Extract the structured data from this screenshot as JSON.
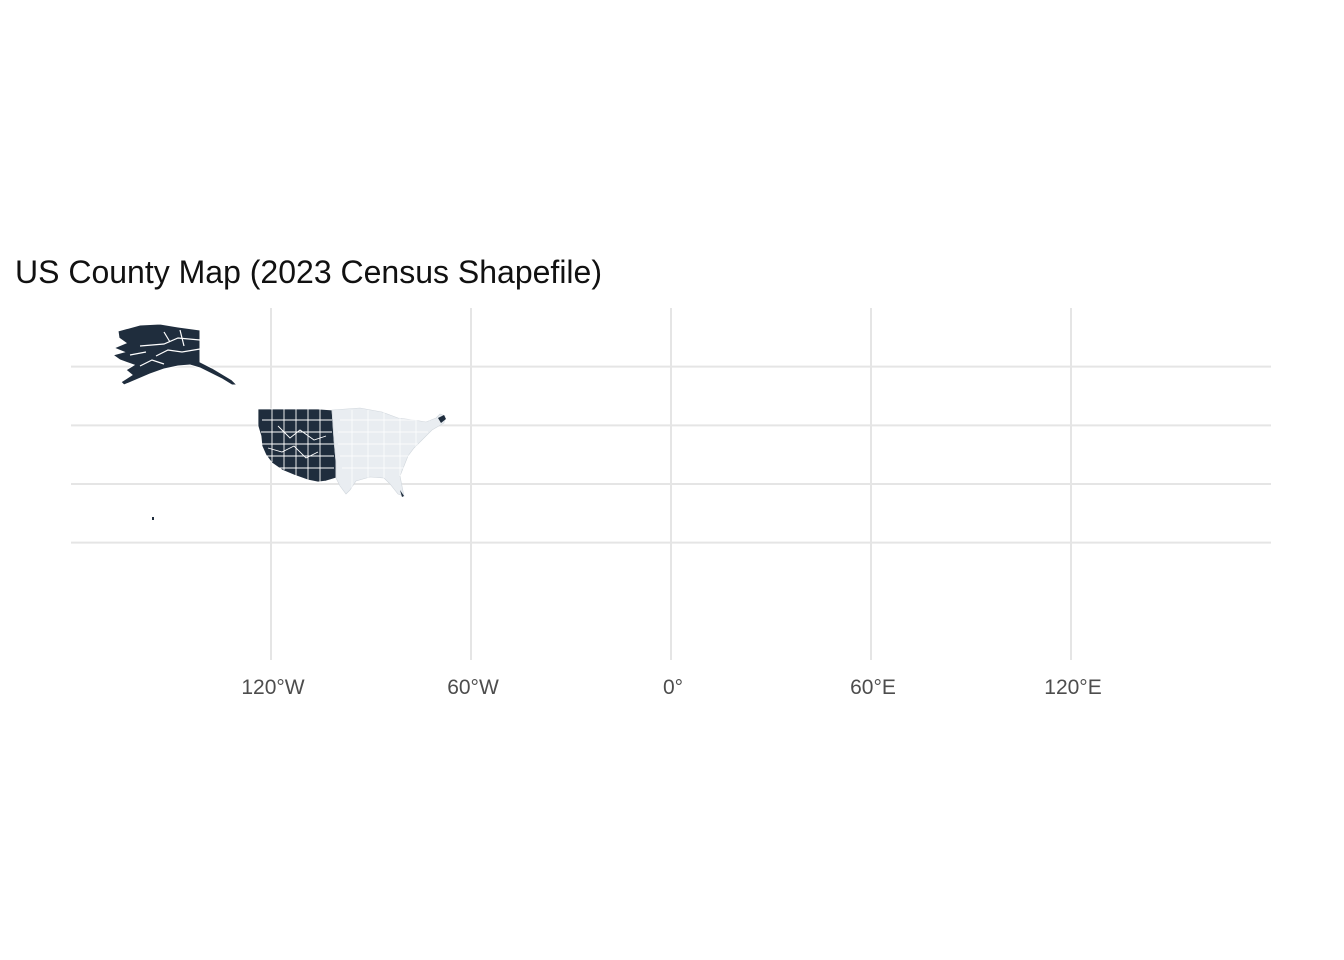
{
  "chart_data": {
    "type": "map",
    "title": "US County Map (2023 Census Shapefile)",
    "projection": "equirectangular",
    "fill_color": "#1f2d3d",
    "border_color": "#ffffff",
    "grid": true,
    "xlim": [
      -180,
      180
    ],
    "ylim": [
      -50,
      100
    ],
    "x_ticks": [
      {
        "value": -120,
        "label": "120°W"
      },
      {
        "value": -60,
        "label": "60°W"
      },
      {
        "value": 0,
        "label": "0°"
      },
      {
        "value": 60,
        "label": "60°E"
      },
      {
        "value": 120,
        "label": "120°E"
      }
    ],
    "y_gridlines": [
      0,
      25,
      50,
      75
    ],
    "regions": [
      {
        "name": "Alaska"
      },
      {
        "name": "Contiguous United States"
      },
      {
        "name": "Hawaii"
      }
    ]
  }
}
